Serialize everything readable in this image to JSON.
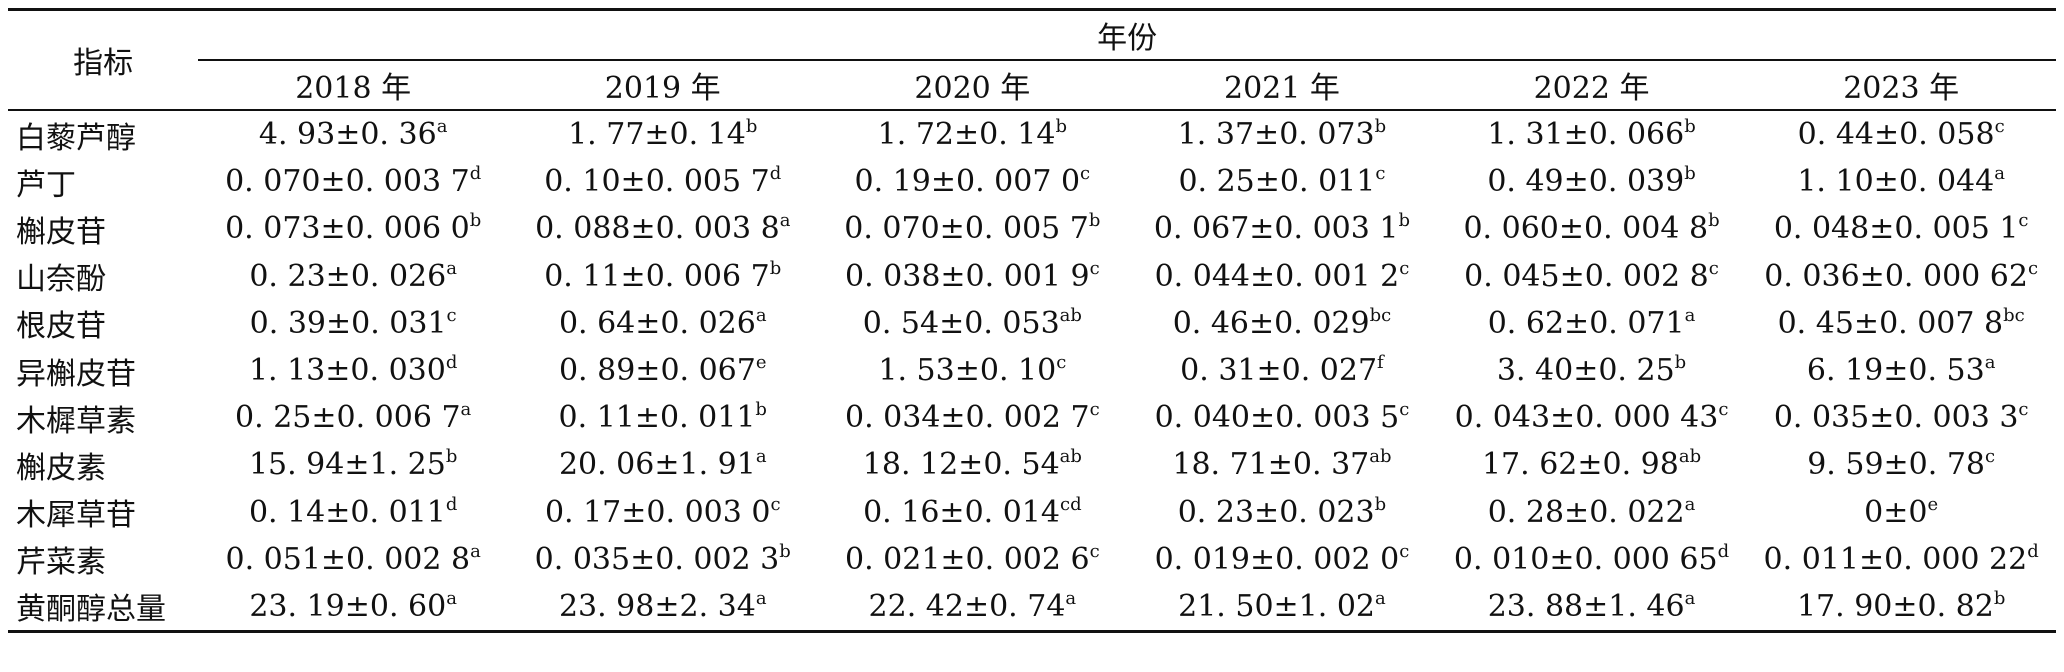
{
  "table": {
    "header": {
      "indicator": "指标",
      "year_group": "年份",
      "years": [
        "2018 年",
        "2019 年",
        "2020 年",
        "2021 年",
        "2022 年",
        "2023 年"
      ]
    },
    "rows": [
      {
        "label": "白藜芦醇",
        "cells": [
          {
            "v": "4. 93±0. 36",
            "s": "a"
          },
          {
            "v": "1. 77±0. 14",
            "s": "b"
          },
          {
            "v": "1. 72±0. 14",
            "s": "b"
          },
          {
            "v": "1. 37±0. 073",
            "s": "b"
          },
          {
            "v": "1. 31±0. 066",
            "s": "b"
          },
          {
            "v": "0. 44±0. 058",
            "s": "c"
          }
        ]
      },
      {
        "label": "芦丁",
        "cells": [
          {
            "v": "0. 070±0. 003 7",
            "s": "d"
          },
          {
            "v": "0. 10±0. 005 7",
            "s": "d"
          },
          {
            "v": "0. 19±0. 007 0",
            "s": "c"
          },
          {
            "v": "0. 25±0. 011",
            "s": "c"
          },
          {
            "v": "0. 49±0. 039",
            "s": "b"
          },
          {
            "v": "1. 10±0. 044",
            "s": "a"
          }
        ]
      },
      {
        "label": "槲皮苷",
        "cells": [
          {
            "v": "0. 073±0. 006 0",
            "s": "b"
          },
          {
            "v": "0. 088±0. 003 8",
            "s": "a"
          },
          {
            "v": "0. 070±0. 005 7",
            "s": "b"
          },
          {
            "v": "0. 067±0. 003 1",
            "s": "b"
          },
          {
            "v": "0. 060±0. 004 8",
            "s": "b"
          },
          {
            "v": "0. 048±0. 005 1",
            "s": "c"
          }
        ]
      },
      {
        "label": "山奈酚",
        "cells": [
          {
            "v": "0. 23±0. 026",
            "s": "a"
          },
          {
            "v": "0. 11±0. 006 7",
            "s": "b"
          },
          {
            "v": "0. 038±0. 001 9",
            "s": "c"
          },
          {
            "v": "0. 044±0. 001 2",
            "s": "c"
          },
          {
            "v": "0. 045±0. 002 8",
            "s": "c"
          },
          {
            "v": "0. 036±0. 000 62",
            "s": "c"
          }
        ]
      },
      {
        "label": "根皮苷",
        "cells": [
          {
            "v": "0. 39±0. 031",
            "s": "c"
          },
          {
            "v": "0. 64±0. 026",
            "s": "a"
          },
          {
            "v": "0. 54±0. 053",
            "s": "ab"
          },
          {
            "v": "0. 46±0. 029",
            "s": "bc"
          },
          {
            "v": "0. 62±0. 071",
            "s": "a"
          },
          {
            "v": "0. 45±0. 007 8",
            "s": "bc"
          }
        ]
      },
      {
        "label": "异槲皮苷",
        "cells": [
          {
            "v": "1. 13±0. 030",
            "s": "d"
          },
          {
            "v": "0. 89±0. 067",
            "s": "e"
          },
          {
            "v": "1. 53±0. 10",
            "s": "c"
          },
          {
            "v": "0. 31±0. 027",
            "s": "f"
          },
          {
            "v": "3. 40±0. 25",
            "s": "b"
          },
          {
            "v": "6. 19±0. 53",
            "s": "a"
          }
        ]
      },
      {
        "label": "木樨草素",
        "cells": [
          {
            "v": "0. 25±0. 006 7",
            "s": "a"
          },
          {
            "v": "0. 11±0. 011",
            "s": "b"
          },
          {
            "v": "0. 034±0. 002 7",
            "s": "c"
          },
          {
            "v": "0. 040±0. 003 5",
            "s": "c"
          },
          {
            "v": "0. 043±0. 000 43",
            "s": "c"
          },
          {
            "v": "0. 035±0. 003 3",
            "s": "c"
          }
        ]
      },
      {
        "label": "槲皮素",
        "cells": [
          {
            "v": "15. 94±1. 25",
            "s": "b"
          },
          {
            "v": "20. 06±1. 91",
            "s": "a"
          },
          {
            "v": "18. 12±0. 54",
            "s": "ab"
          },
          {
            "v": "18. 71±0. 37",
            "s": "ab"
          },
          {
            "v": "17. 62±0. 98",
            "s": "ab"
          },
          {
            "v": "9. 59±0. 78",
            "s": "c"
          }
        ]
      },
      {
        "label": "木犀草苷",
        "cells": [
          {
            "v": "0. 14±0. 011",
            "s": "d"
          },
          {
            "v": "0. 17±0. 003 0",
            "s": "c"
          },
          {
            "v": "0. 16±0. 014",
            "s": "cd"
          },
          {
            "v": "0. 23±0. 023",
            "s": "b"
          },
          {
            "v": "0. 28±0. 022",
            "s": "a"
          },
          {
            "v": "0±0",
            "s": "e"
          }
        ]
      },
      {
        "label": "芹菜素",
        "cells": [
          {
            "v": "0. 051±0. 002 8",
            "s": "a"
          },
          {
            "v": "0. 035±0. 002 3",
            "s": "b"
          },
          {
            "v": "0. 021±0. 002 6",
            "s": "c"
          },
          {
            "v": "0. 019±0. 002 0",
            "s": "c"
          },
          {
            "v": "0. 010±0. 000 65",
            "s": "d"
          },
          {
            "v": "0. 011±0. 000 22",
            "s": "d"
          }
        ]
      },
      {
        "label": "黄酮醇总量",
        "cells": [
          {
            "v": "23. 19±0. 60",
            "s": "a"
          },
          {
            "v": "23. 98±2. 34",
            "s": "a"
          },
          {
            "v": "22. 42±0. 74",
            "s": "a"
          },
          {
            "v": "21. 50±1. 02",
            "s": "a"
          },
          {
            "v": "23. 88±1. 46",
            "s": "a"
          },
          {
            "v": "17. 90±0. 82",
            "s": "b"
          }
        ]
      }
    ]
  }
}
